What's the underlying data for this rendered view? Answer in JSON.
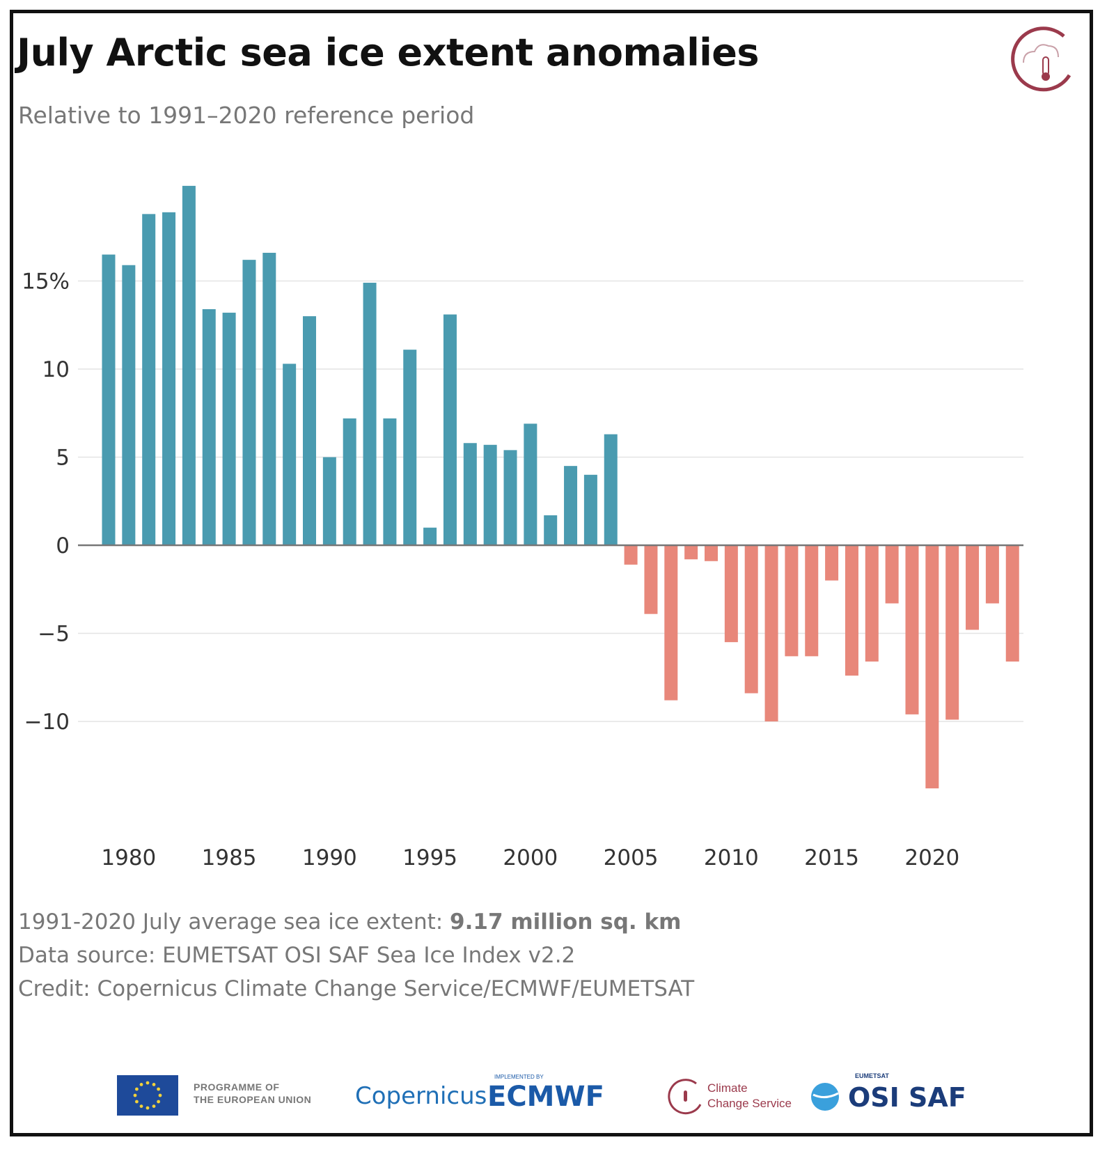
{
  "title": "July Arctic sea ice extent anomalies",
  "subtitle": "Relative to 1991–2020 reference period",
  "footer": {
    "average_prefix": "1991-2020 July average sea ice extent: ",
    "average_value": "9.17 million sq. km",
    "source": "Data source: EUMETSAT OSI SAF Sea Ice Index v2.2",
    "credit": "Credit: Copernicus Climate Change Service/ECMWF/EUMETSAT"
  },
  "logos": {
    "eu": "PROGRAMME OF\nTHE EUROPEAN UNION",
    "copernicus": "Copernicus",
    "ecmwf": "ECMWF",
    "ecmwf_small": "IMPLEMENTED BY",
    "ccs": "Climate\nChange Service",
    "osi_small": "EUMETSAT",
    "osi": "OSI SAF"
  },
  "colors": {
    "positive": "#4a9bb0",
    "negative": "#e8877a",
    "grid": "#e4e4e4",
    "zero": "#777777",
    "axis_text": "#333333",
    "logo_red": "#9b3a4c"
  },
  "chart_data": {
    "type": "bar",
    "title": "July Arctic sea ice extent anomalies",
    "subtitle": "Relative to 1991–2020 reference period",
    "xlabel": "",
    "ylabel": "",
    "ylim": [
      -15,
      20.5
    ],
    "yticks": [
      -10,
      -5,
      0,
      5,
      10,
      15
    ],
    "ytick_labels": [
      "−10",
      "−5",
      "0",
      "5",
      "10",
      "15%"
    ],
    "xticks": [
      1980,
      1985,
      1990,
      1995,
      2000,
      2005,
      2010,
      2015,
      2020
    ],
    "categories": [
      1979,
      1980,
      1981,
      1982,
      1983,
      1984,
      1985,
      1986,
      1987,
      1988,
      1989,
      1990,
      1991,
      1992,
      1993,
      1994,
      1995,
      1996,
      1997,
      1998,
      1999,
      2000,
      2001,
      2002,
      2003,
      2004,
      2005,
      2006,
      2007,
      2008,
      2009,
      2010,
      2011,
      2012,
      2013,
      2014,
      2015,
      2016,
      2017,
      2018,
      2019,
      2020,
      2021,
      2022,
      2023,
      2024
    ],
    "values": [
      16.5,
      15.9,
      18.8,
      18.9,
      20.4,
      13.4,
      13.2,
      16.2,
      16.6,
      10.3,
      13.0,
      5.0,
      7.2,
      14.9,
      7.2,
      11.1,
      1.0,
      13.1,
      5.8,
      5.7,
      5.4,
      6.9,
      1.7,
      4.5,
      4.0,
      6.3,
      -1.1,
      -3.9,
      -8.8,
      -0.8,
      -0.9,
      -5.5,
      -8.4,
      -10.0,
      -6.3,
      -6.3,
      -2.0,
      -7.4,
      -6.6,
      -3.3,
      -9.6,
      -13.8,
      -9.9,
      -4.8,
      -3.3,
      -6.6
    ]
  }
}
